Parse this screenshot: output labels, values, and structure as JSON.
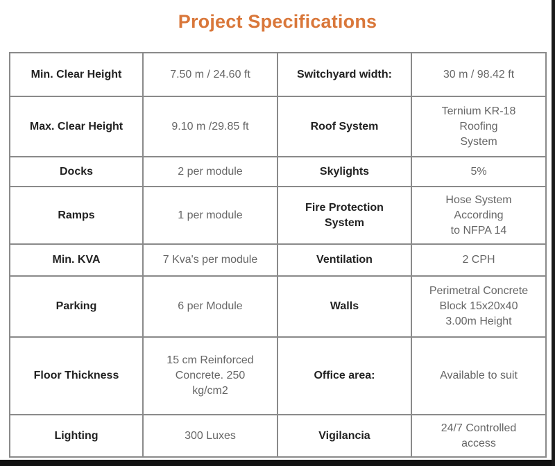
{
  "title": "Project Specifications",
  "rows": [
    {
      "k1": "Min. Clear Height",
      "v1": "7.50 m / 24.60 ft",
      "k2": "Switchyard width:",
      "v2": "30 m / 98.42 ft"
    },
    {
      "k1": "Max. Clear Height",
      "v1": "9.10 m /29.85 ft",
      "k2": "Roof System",
      "v2": "Ternium KR-18\nRoofing\nSystem"
    },
    {
      "k1": "Docks",
      "v1": "2 per module",
      "k2": "Skylights",
      "v2": "5%"
    },
    {
      "k1": "Ramps",
      "v1": "1 per module",
      "k2": "Fire Protection\nSystem",
      "v2": "Hose System\nAccording\nto NFPA 14"
    },
    {
      "k1": "Min. KVA",
      "v1": "7 Kva's per module",
      "k2": "Ventilation",
      "v2": "2 CPH"
    },
    {
      "k1": "Parking",
      "v1": "6 per Module",
      "k2": "Walls",
      "v2": "Perimetral Concrete\nBlock 15x20x40\n3.00m Height"
    },
    {
      "k1": "Floor Thickness",
      "v1": "15 cm Reinforced\nConcrete. 250\nkg/cm2",
      "k2": "Office area:",
      "v2": "Available to suit"
    },
    {
      "k1": "Lighting",
      "v1": "300 Luxes",
      "k2": "Vigilancia",
      "v2": "24/7 Controlled\naccess"
    }
  ]
}
